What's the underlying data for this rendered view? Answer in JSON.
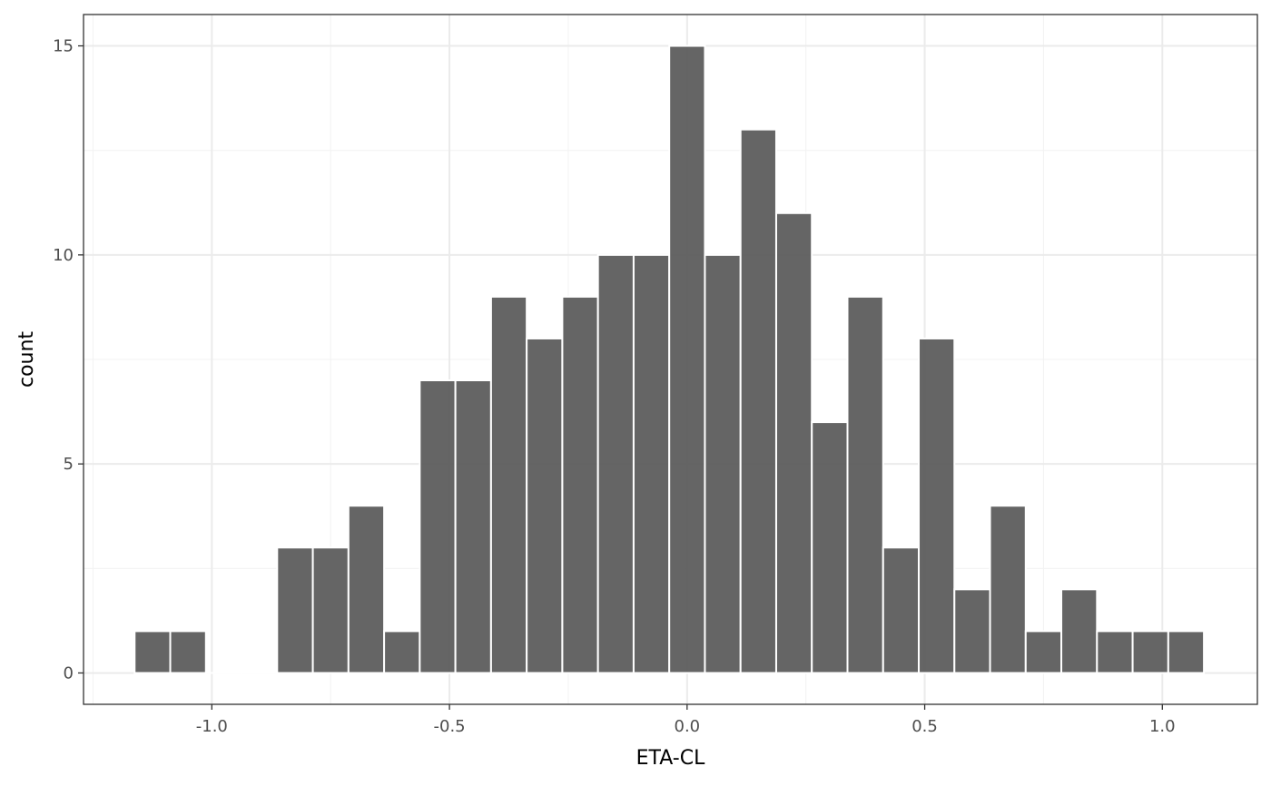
{
  "chart_data": {
    "type": "bar",
    "subtype": "histogram",
    "title": "",
    "xlabel": "ETA-CL",
    "ylabel": "count",
    "bin_width": 0.075,
    "bins": [
      {
        "center": -1.125,
        "count": 1
      },
      {
        "center": -1.05,
        "count": 1
      },
      {
        "center": -0.975,
        "count": 0
      },
      {
        "center": -0.9,
        "count": 0
      },
      {
        "center": -0.825,
        "count": 3
      },
      {
        "center": -0.75,
        "count": 3
      },
      {
        "center": -0.675,
        "count": 4
      },
      {
        "center": -0.6,
        "count": 1
      },
      {
        "center": -0.525,
        "count": 7
      },
      {
        "center": -0.45,
        "count": 7
      },
      {
        "center": -0.375,
        "count": 9
      },
      {
        "center": -0.3,
        "count": 8
      },
      {
        "center": -0.225,
        "count": 9
      },
      {
        "center": -0.15,
        "count": 10
      },
      {
        "center": -0.075,
        "count": 10
      },
      {
        "center": 0.0,
        "count": 15
      },
      {
        "center": 0.075,
        "count": 10
      },
      {
        "center": 0.15,
        "count": 13
      },
      {
        "center": 0.225,
        "count": 11
      },
      {
        "center": 0.3,
        "count": 6
      },
      {
        "center": 0.375,
        "count": 9
      },
      {
        "center": 0.45,
        "count": 3
      },
      {
        "center": 0.525,
        "count": 8
      },
      {
        "center": 0.6,
        "count": 2
      },
      {
        "center": 0.675,
        "count": 4
      },
      {
        "center": 0.75,
        "count": 1
      },
      {
        "center": 0.825,
        "count": 2
      },
      {
        "center": 0.9,
        "count": 1
      },
      {
        "center": 0.975,
        "count": 1
      },
      {
        "center": 1.05,
        "count": 1
      }
    ],
    "xlim": [
      -1.27,
      1.2
    ],
    "ylim": [
      -0.75,
      15.75
    ],
    "x_ticks": [
      {
        "value": -1.0,
        "label": "-1.0"
      },
      {
        "value": -0.5,
        "label": "-0.5"
      },
      {
        "value": 0.0,
        "label": "0.0"
      },
      {
        "value": 0.5,
        "label": "0.5"
      },
      {
        "value": 1.0,
        "label": "1.0"
      }
    ],
    "y_ticks": [
      {
        "value": 0,
        "label": "0"
      },
      {
        "value": 5,
        "label": "5"
      },
      {
        "value": 10,
        "label": "10"
      },
      {
        "value": 15,
        "label": "15"
      }
    ],
    "grid": true,
    "legend": "none",
    "colors": {
      "bar_fill": "#595959",
      "bar_outline": "#ffffff",
      "panel_border": "#333333",
      "grid_major": "#ebebeb",
      "grid_minor": "#f3f3f3",
      "tick_label": "#4d4d4d",
      "axis_title": "#000000"
    }
  }
}
